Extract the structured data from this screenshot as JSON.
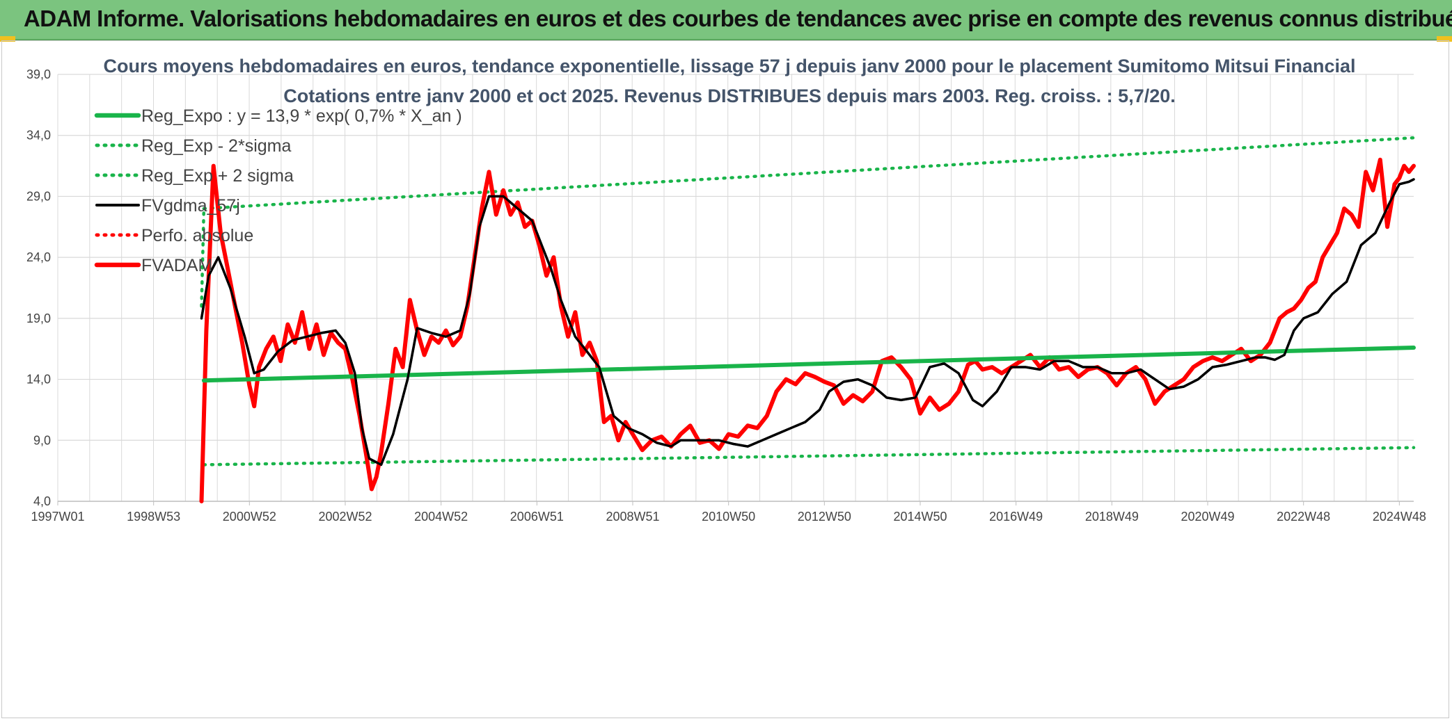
{
  "banner": {
    "title": "ADAM Informe. Valorisations hebdomadaires en euros et des courbes de tendances avec prise en compte des revenus connus distribués"
  },
  "colors": {
    "banner_bg": "#7bc47f",
    "green": "#19b44a",
    "dotted_green": "#19b44a",
    "black": "#000000",
    "red": "#ff0000"
  },
  "chart_data": {
    "type": "line",
    "title": "Cours moyens hebdomadaires en euros, tendance exponentielle, lissage 57 j depuis janv 2000 pour le placement Sumitomo Mitsui Financial",
    "subtitle": "Cotations entre janv 2000 et oct 2025. Revenus DISTRIBUES depuis mars 2003. Reg. croiss. : 5,7/20.",
    "xlabel": "",
    "ylabel": "",
    "ylim": [
      4.0,
      39.0
    ],
    "xlim": [
      1997.0,
      2025.3
    ],
    "y_ticks": [
      "4,0",
      "9,0",
      "14,0",
      "19,0",
      "24,0",
      "29,0",
      "34,0",
      "39,0"
    ],
    "x_ticks": [
      {
        "label": "1997W01",
        "x": 1997.0
      },
      {
        "label": "1998W53",
        "x": 1999.0
      },
      {
        "label": "2000W52",
        "x": 2001.0
      },
      {
        "label": "2002W52",
        "x": 2003.0
      },
      {
        "label": "2004W52",
        "x": 2005.0
      },
      {
        "label": "2006W51",
        "x": 2007.0
      },
      {
        "label": "2008W51",
        "x": 2009.0
      },
      {
        "label": "2010W50",
        "x": 2011.0
      },
      {
        "label": "2012W50",
        "x": 2013.0
      },
      {
        "label": "2014W50",
        "x": 2015.0
      },
      {
        "label": "2016W49",
        "x": 2017.0
      },
      {
        "label": "2018W49",
        "x": 2019.0
      },
      {
        "label": "2020W49",
        "x": 2021.0
      },
      {
        "label": "2022W48",
        "x": 2023.0
      },
      {
        "label": "2024W48",
        "x": 2025.0
      }
    ],
    "grid": true,
    "legend_position": "top-left",
    "series": [
      {
        "name": "Reg_Expo : y = 13,9 * exp( 0,7% *  X_an )",
        "style": "solid-thick",
        "color": "#19b44a",
        "x": [
          2000.05,
          2025.3
        ],
        "y": [
          13.9,
          16.6
        ]
      },
      {
        "name": "Reg_Exp - 2*sigma",
        "style": "dotted",
        "color": "#19b44a",
        "x": [
          2000.05,
          2025.3
        ],
        "y": [
          7.0,
          8.4
        ]
      },
      {
        "name": "Reg_Exp + 2 sigma",
        "style": "dotted",
        "color": "#19b44a",
        "x": [
          2000.05,
          2025.3
        ],
        "y": [
          28.0,
          33.8
        ],
        "lead_in": {
          "x": [
            2000.0,
            2000.05
          ],
          "y": [
            20.0,
            28.0
          ]
        }
      },
      {
        "name": "FVgdma_57j",
        "style": "solid",
        "color": "#000000",
        "x": [
          2000.0,
          2000.15,
          2000.35,
          2000.6,
          2000.9,
          2001.1,
          2001.3,
          2001.6,
          2001.9,
          2002.2,
          2002.5,
          2002.8,
          2003.0,
          2003.2,
          2003.35,
          2003.5,
          2003.75,
          2004.0,
          2004.3,
          2004.5,
          2004.8,
          2005.1,
          2005.4,
          2005.6,
          2005.8,
          2006.0,
          2006.3,
          2006.6,
          2006.9,
          2007.1,
          2007.3,
          2007.5,
          2007.8,
          2008.0,
          2008.3,
          2008.6,
          2008.9,
          2009.2,
          2009.5,
          2009.8,
          2010.0,
          2010.4,
          2010.8,
          2011.1,
          2011.4,
          2011.7,
          2012.0,
          2012.3,
          2012.6,
          2012.9,
          2013.1,
          2013.4,
          2013.7,
          2014.0,
          2014.3,
          2014.6,
          2014.9,
          2015.2,
          2015.5,
          2015.8,
          2016.1,
          2016.3,
          2016.6,
          2016.9,
          2017.2,
          2017.5,
          2017.8,
          2018.1,
          2018.4,
          2018.7,
          2019.0,
          2019.3,
          2019.6,
          2019.9,
          2020.2,
          2020.5,
          2020.8,
          2021.1,
          2021.4,
          2021.7,
          2022.0,
          2022.2,
          2022.4,
          2022.6,
          2022.8,
          2023.0,
          2023.3,
          2023.6,
          2023.9,
          2024.2,
          2024.5,
          2024.8,
          2025.0,
          2025.2,
          2025.3
        ],
        "y": [
          19.0,
          22.5,
          24.0,
          21.5,
          17.5,
          14.5,
          14.8,
          16.3,
          17.2,
          17.5,
          17.8,
          18.0,
          17.0,
          14.5,
          10.0,
          7.5,
          7.0,
          9.5,
          14.0,
          18.2,
          17.8,
          17.5,
          18.0,
          21.0,
          26.5,
          29.0,
          29.0,
          28.0,
          27.0,
          25.0,
          23.0,
          20.5,
          17.5,
          16.5,
          15.0,
          11.0,
          10.0,
          9.5,
          8.8,
          8.5,
          9.0,
          9.0,
          9.0,
          8.7,
          8.5,
          9.0,
          9.5,
          10.0,
          10.5,
          11.5,
          13.0,
          13.8,
          14.0,
          13.5,
          12.5,
          12.3,
          12.5,
          15.0,
          15.3,
          14.5,
          12.3,
          11.8,
          13.0,
          15.0,
          15.0,
          14.8,
          15.5,
          15.5,
          15.0,
          15.0,
          14.5,
          14.5,
          14.8,
          14.0,
          13.2,
          13.4,
          14.0,
          15.0,
          15.2,
          15.5,
          15.8,
          15.8,
          15.6,
          16.0,
          18.0,
          19.0,
          19.5,
          21.0,
          22.0,
          25.0,
          26.0,
          28.5,
          30.0,
          30.2,
          30.4
        ]
      },
      {
        "name": "Perfo. absolue",
        "style": "dotted",
        "color": "#ff0000",
        "x": [],
        "y": []
      },
      {
        "name": "FVADAM",
        "style": "solid-thick",
        "color": "#ff0000",
        "x": [
          2000.0,
          2000.1,
          2000.25,
          2000.4,
          2000.55,
          2000.7,
          2000.85,
          2001.0,
          2001.1,
          2001.2,
          2001.35,
          2001.5,
          2001.65,
          2001.8,
          2001.95,
          2002.1,
          2002.25,
          2002.4,
          2002.55,
          2002.7,
          2002.85,
          2003.0,
          2003.15,
          2003.3,
          2003.45,
          2003.55,
          2003.65,
          2003.75,
          2003.9,
          2004.05,
          2004.2,
          2004.35,
          2004.5,
          2004.65,
          2004.8,
          2004.95,
          2005.1,
          2005.25,
          2005.4,
          2005.55,
          2005.7,
          2005.85,
          2006.0,
          2006.15,
          2006.3,
          2006.45,
          2006.6,
          2006.75,
          2006.9,
          2007.05,
          2007.2,
          2007.35,
          2007.5,
          2007.65,
          2007.8,
          2007.95,
          2008.1,
          2008.25,
          2008.4,
          2008.55,
          2008.7,
          2008.85,
          2009.0,
          2009.2,
          2009.4,
          2009.6,
          2009.8,
          2010.0,
          2010.2,
          2010.4,
          2010.6,
          2010.8,
          2011.0,
          2011.2,
          2011.4,
          2011.6,
          2011.8,
          2012.0,
          2012.2,
          2012.4,
          2012.6,
          2012.8,
          2013.0,
          2013.2,
          2013.4,
          2013.6,
          2013.8,
          2014.0,
          2014.2,
          2014.4,
          2014.6,
          2014.8,
          2015.0,
          2015.2,
          2015.4,
          2015.6,
          2015.8,
          2016.0,
          2016.15,
          2016.3,
          2016.5,
          2016.7,
          2016.9,
          2017.1,
          2017.3,
          2017.5,
          2017.7,
          2017.9,
          2018.1,
          2018.3,
          2018.5,
          2018.7,
          2018.9,
          2019.1,
          2019.3,
          2019.5,
          2019.7,
          2019.9,
          2020.1,
          2020.3,
          2020.5,
          2020.7,
          2020.9,
          2021.1,
          2021.3,
          2021.5,
          2021.7,
          2021.9,
          2022.1,
          2022.3,
          2022.5,
          2022.65,
          2022.8,
          2022.95,
          2023.1,
          2023.25,
          2023.4,
          2023.55,
          2023.7,
          2023.85,
          2024.0,
          2024.15,
          2024.3,
          2024.45,
          2024.6,
          2024.75,
          2024.9,
          2025.0,
          2025.1,
          2025.2,
          2025.3
        ],
        "y": [
          4.0,
          18.0,
          31.5,
          26.0,
          23.0,
          20.0,
          17.0,
          13.5,
          11.8,
          15.0,
          16.5,
          17.5,
          15.5,
          18.5,
          17.0,
          19.5,
          16.5,
          18.5,
          16.0,
          17.8,
          17.0,
          16.5,
          14.0,
          11.0,
          7.5,
          5.0,
          6.0,
          8.0,
          12.0,
          16.5,
          15.0,
          20.5,
          18.0,
          16.0,
          17.5,
          17.0,
          18.0,
          16.8,
          17.5,
          20.0,
          24.0,
          28.0,
          31.0,
          27.5,
          29.5,
          27.5,
          28.5,
          26.5,
          27.0,
          25.0,
          22.5,
          24.0,
          20.0,
          17.5,
          19.5,
          16.0,
          17.0,
          15.5,
          10.5,
          11.0,
          9.0,
          10.5,
          9.5,
          8.2,
          9.0,
          9.3,
          8.5,
          9.5,
          10.2,
          8.8,
          9.0,
          8.3,
          9.5,
          9.3,
          10.2,
          10.0,
          11.0,
          13.0,
          14.0,
          13.6,
          14.5,
          14.2,
          13.8,
          13.5,
          12.0,
          12.7,
          12.2,
          13.0,
          15.5,
          15.8,
          15.0,
          14.0,
          11.2,
          12.5,
          11.5,
          12.0,
          13.0,
          15.2,
          15.5,
          14.8,
          15.0,
          14.5,
          15.0,
          15.5,
          16.0,
          15.0,
          15.8,
          14.8,
          15.0,
          14.2,
          14.8,
          15.0,
          14.5,
          13.5,
          14.5,
          15.0,
          14.0,
          12.0,
          13.0,
          13.5,
          14.0,
          15.0,
          15.5,
          15.8,
          15.5,
          16.0,
          16.5,
          15.5,
          16.0,
          17.0,
          19.0,
          19.5,
          19.8,
          20.5,
          21.5,
          22.0,
          24.0,
          25.0,
          26.0,
          28.0,
          27.5,
          26.5,
          31.0,
          29.5,
          32.0,
          26.5,
          30.0,
          30.5,
          31.5,
          31.0,
          31.5
        ]
      }
    ]
  }
}
